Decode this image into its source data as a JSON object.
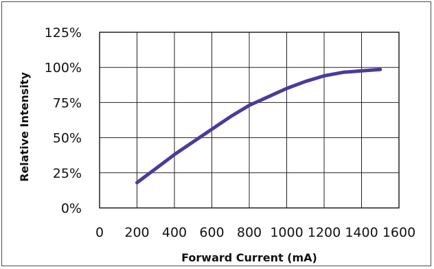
{
  "chart_data": {
    "type": "line",
    "title": "",
    "xlabel": "Forward Current (mA)",
    "ylabel": "Relative Intensity",
    "xlim": [
      0,
      1600
    ],
    "ylim": [
      0,
      125
    ],
    "x_ticks": [
      0,
      200,
      400,
      600,
      800,
      1000,
      1200,
      1400,
      1600
    ],
    "x_tick_labels": [
      "0",
      "200",
      "400",
      "600",
      "800",
      "1000",
      "1200",
      "1400",
      "1600"
    ],
    "y_ticks": [
      0,
      25,
      50,
      75,
      100,
      125
    ],
    "y_tick_labels": [
      "0%",
      "25%",
      "50%",
      "75%",
      "100%",
      "125%"
    ],
    "grid": true,
    "legend": "none",
    "series": [
      {
        "color": "#4b3a9c",
        "x": [
          200,
          300,
          400,
          500,
          600,
          700,
          800,
          900,
          1000,
          1100,
          1200,
          1300,
          1400,
          1500
        ],
        "y": [
          18,
          28,
          38,
          47,
          56,
          65,
          73,
          79,
          85,
          90,
          94,
          96.5,
          97.5,
          98.5
        ]
      }
    ]
  }
}
